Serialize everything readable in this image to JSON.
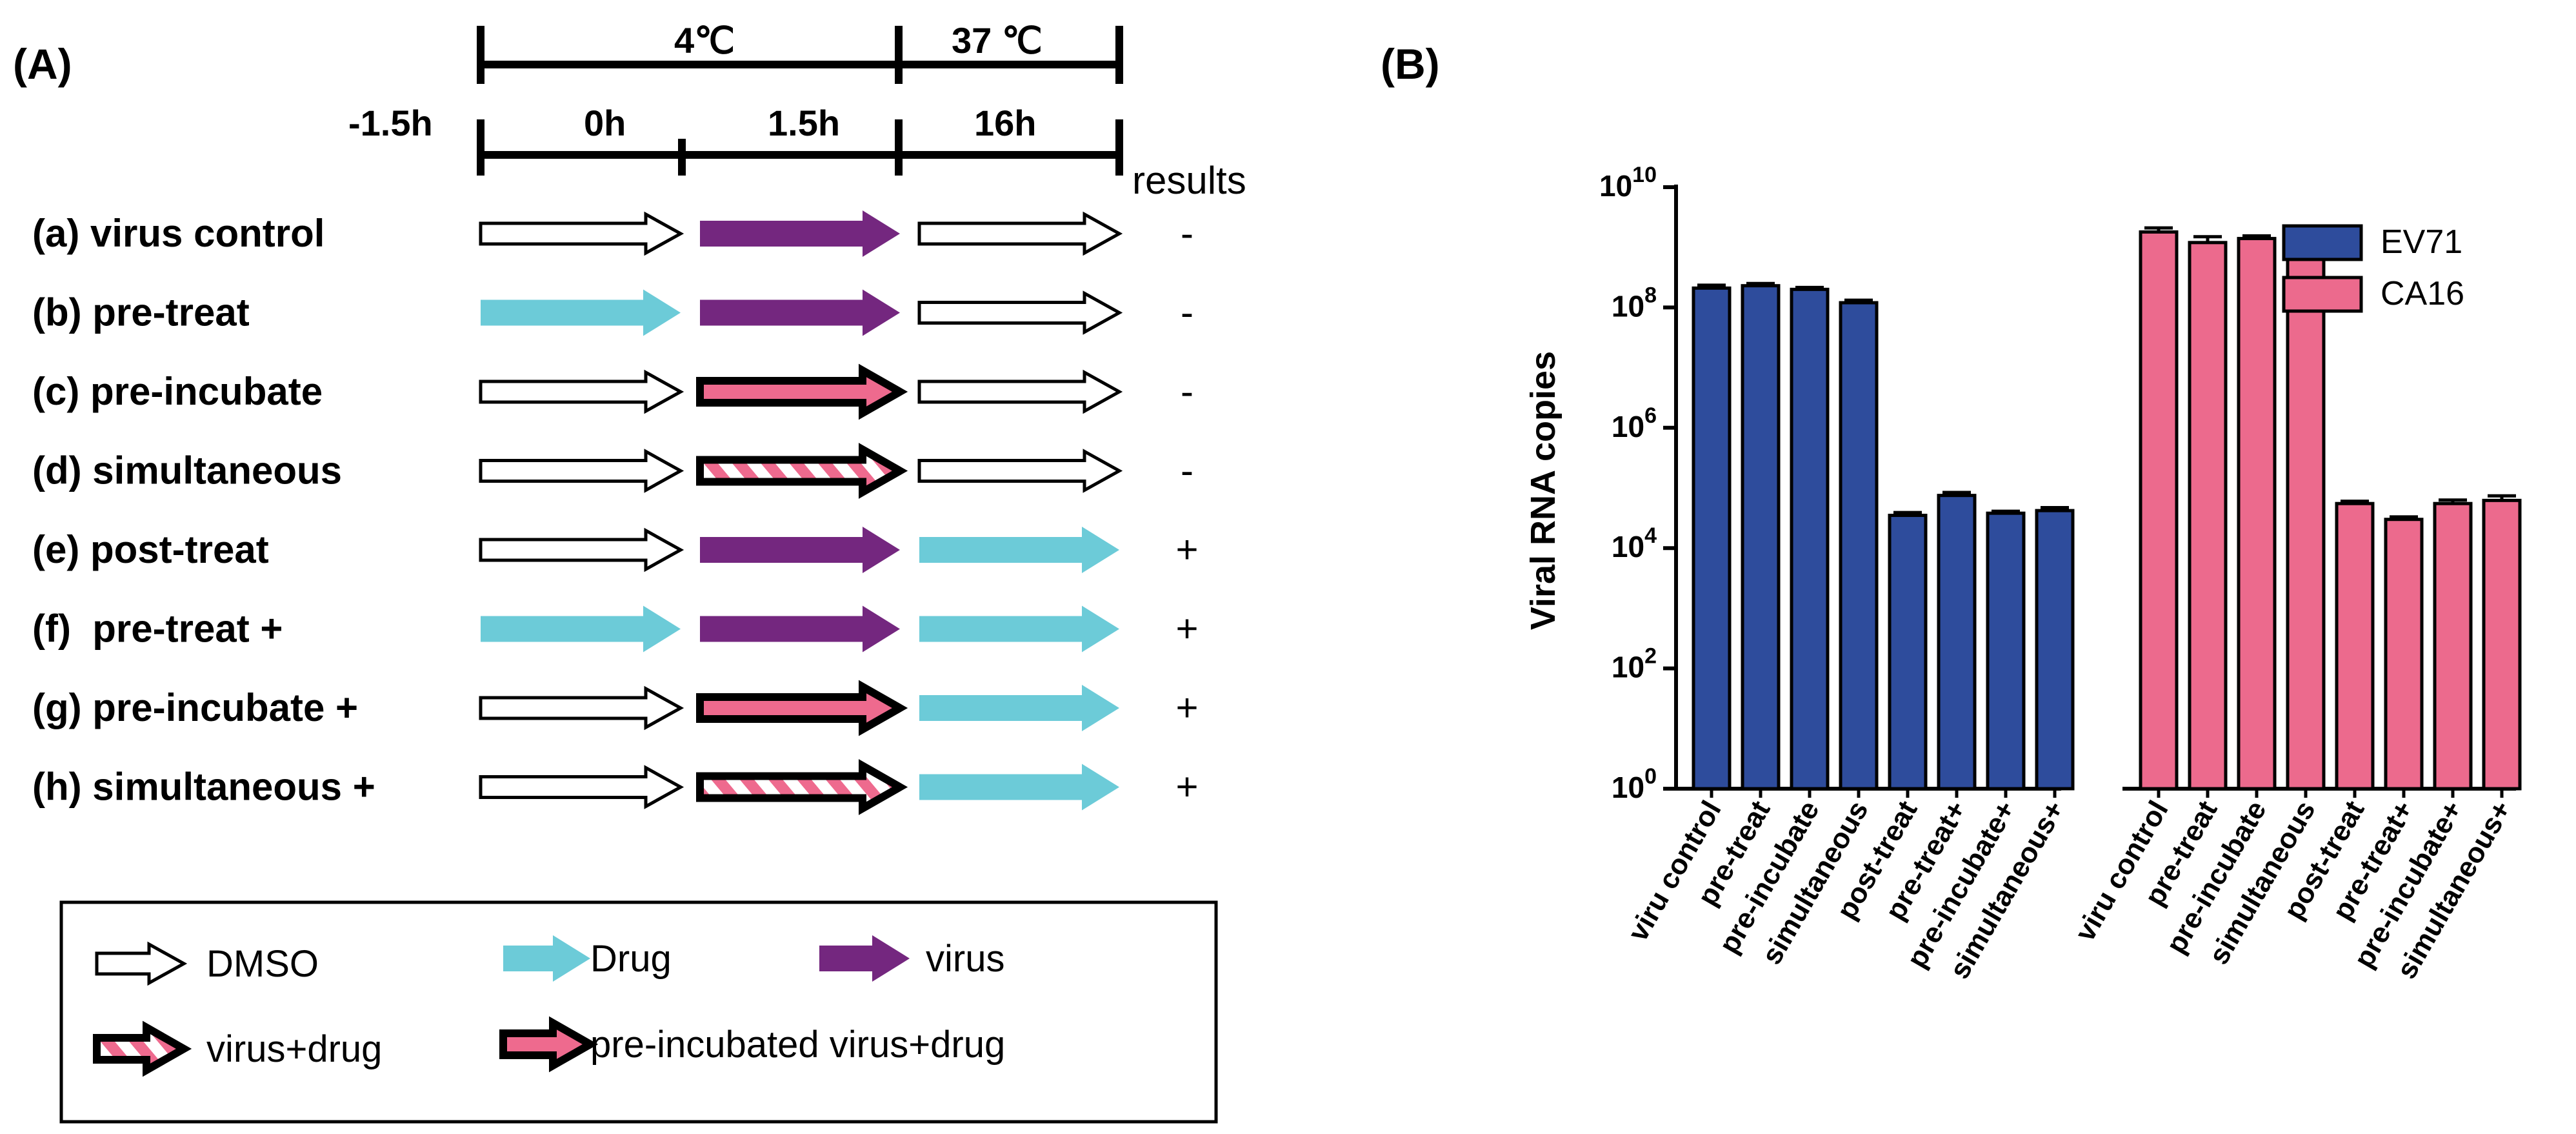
{
  "panel_a": {
    "label": "(A)",
    "timeline": {
      "temp_4": "4℃",
      "temp_37": "37 ℃",
      "times": [
        "-1.5h",
        "0h",
        "1.5h",
        "16h"
      ],
      "results_header": "results"
    },
    "rows": [
      {
        "label": "(a) virus control",
        "stages": [
          "dmso",
          "virus",
          "dmso"
        ],
        "result": "-"
      },
      {
        "label": "(b) pre-treat",
        "stages": [
          "drug",
          "virus",
          "dmso"
        ],
        "result": "-"
      },
      {
        "label": "(c) pre-incubate",
        "stages": [
          "dmso",
          "preinc",
          "dmso"
        ],
        "result": "-"
      },
      {
        "label": "(d) simultaneous",
        "stages": [
          "dmso",
          "stripe",
          "dmso"
        ],
        "result": "-"
      },
      {
        "label": "(e) post-treat",
        "stages": [
          "dmso",
          "virus",
          "drug"
        ],
        "result": "+"
      },
      {
        "label": "(f)  pre-treat +",
        "stages": [
          "drug",
          "virus",
          "drug"
        ],
        "result": "+"
      },
      {
        "label": "(g) pre-incubate +",
        "stages": [
          "dmso",
          "preinc",
          "drug"
        ],
        "result": "+"
      },
      {
        "label": "(h) simultaneous +",
        "stages": [
          "dmso",
          "stripe",
          "drug"
        ],
        "result": "+"
      }
    ],
    "legend": [
      {
        "kind": "dmso",
        "label": "DMSO"
      },
      {
        "kind": "drug",
        "label": "Drug"
      },
      {
        "kind": "virus",
        "label": "virus"
      },
      {
        "kind": "stripe",
        "label": "virus+drug"
      },
      {
        "kind": "preinc",
        "label": "pre-incubated virus+drug"
      }
    ],
    "colors": {
      "drug": "#6ccbd8",
      "virus": "#74277f",
      "pink": "#ee6a8e",
      "outline": "#000000",
      "dmso_fill": "#ffffff"
    }
  },
  "panel_b": {
    "label": "(B)",
    "chart_data": {
      "type": "bar",
      "scale": "log10",
      "ylabel": "Viral RNA copies",
      "ylim": [
        1,
        10000000000
      ],
      "yticks": [
        {
          "value": 1,
          "base": "10",
          "exp": "0"
        },
        {
          "value": 100,
          "base": "10",
          "exp": "2"
        },
        {
          "value": 10000,
          "base": "10",
          "exp": "4"
        },
        {
          "value": 1000000,
          "base": "10",
          "exp": "6"
        },
        {
          "value": 100000000,
          "base": "10",
          "exp": "8"
        },
        {
          "value": 10000000000,
          "base": "10",
          "exp": "10"
        }
      ],
      "series": [
        {
          "name": "EV71",
          "color": "#2e4c9c",
          "categories": [
            "viru control",
            "pre-treat",
            "pre-incubate",
            "simultaneous",
            "post-treat",
            "pre-treat+",
            "pre-incubate+",
            "simultaneous+"
          ],
          "values": [
            210000000,
            230000000,
            200000000,
            120000000,
            35000,
            75000,
            38000,
            42000
          ],
          "errors": [
            25000000,
            20000000,
            15000000,
            12000000,
            4000,
            9000,
            3000,
            5000
          ]
        },
        {
          "name": "CA16",
          "color": "#ec6a8d",
          "categories": [
            "viru control",
            "pre-treat",
            "pre-incubate",
            "simultaneous",
            "post-treat",
            "pre-treat+",
            "pre-incubate+",
            "simultaneous+"
          ],
          "values": [
            1800000000,
            1200000000,
            1400000000,
            1300000000,
            55000,
            30000,
            55000,
            62000
          ],
          "errors": [
            300000000,
            300000000,
            150000000,
            200000000,
            5000,
            3000,
            8000,
            12000
          ]
        }
      ]
    }
  }
}
